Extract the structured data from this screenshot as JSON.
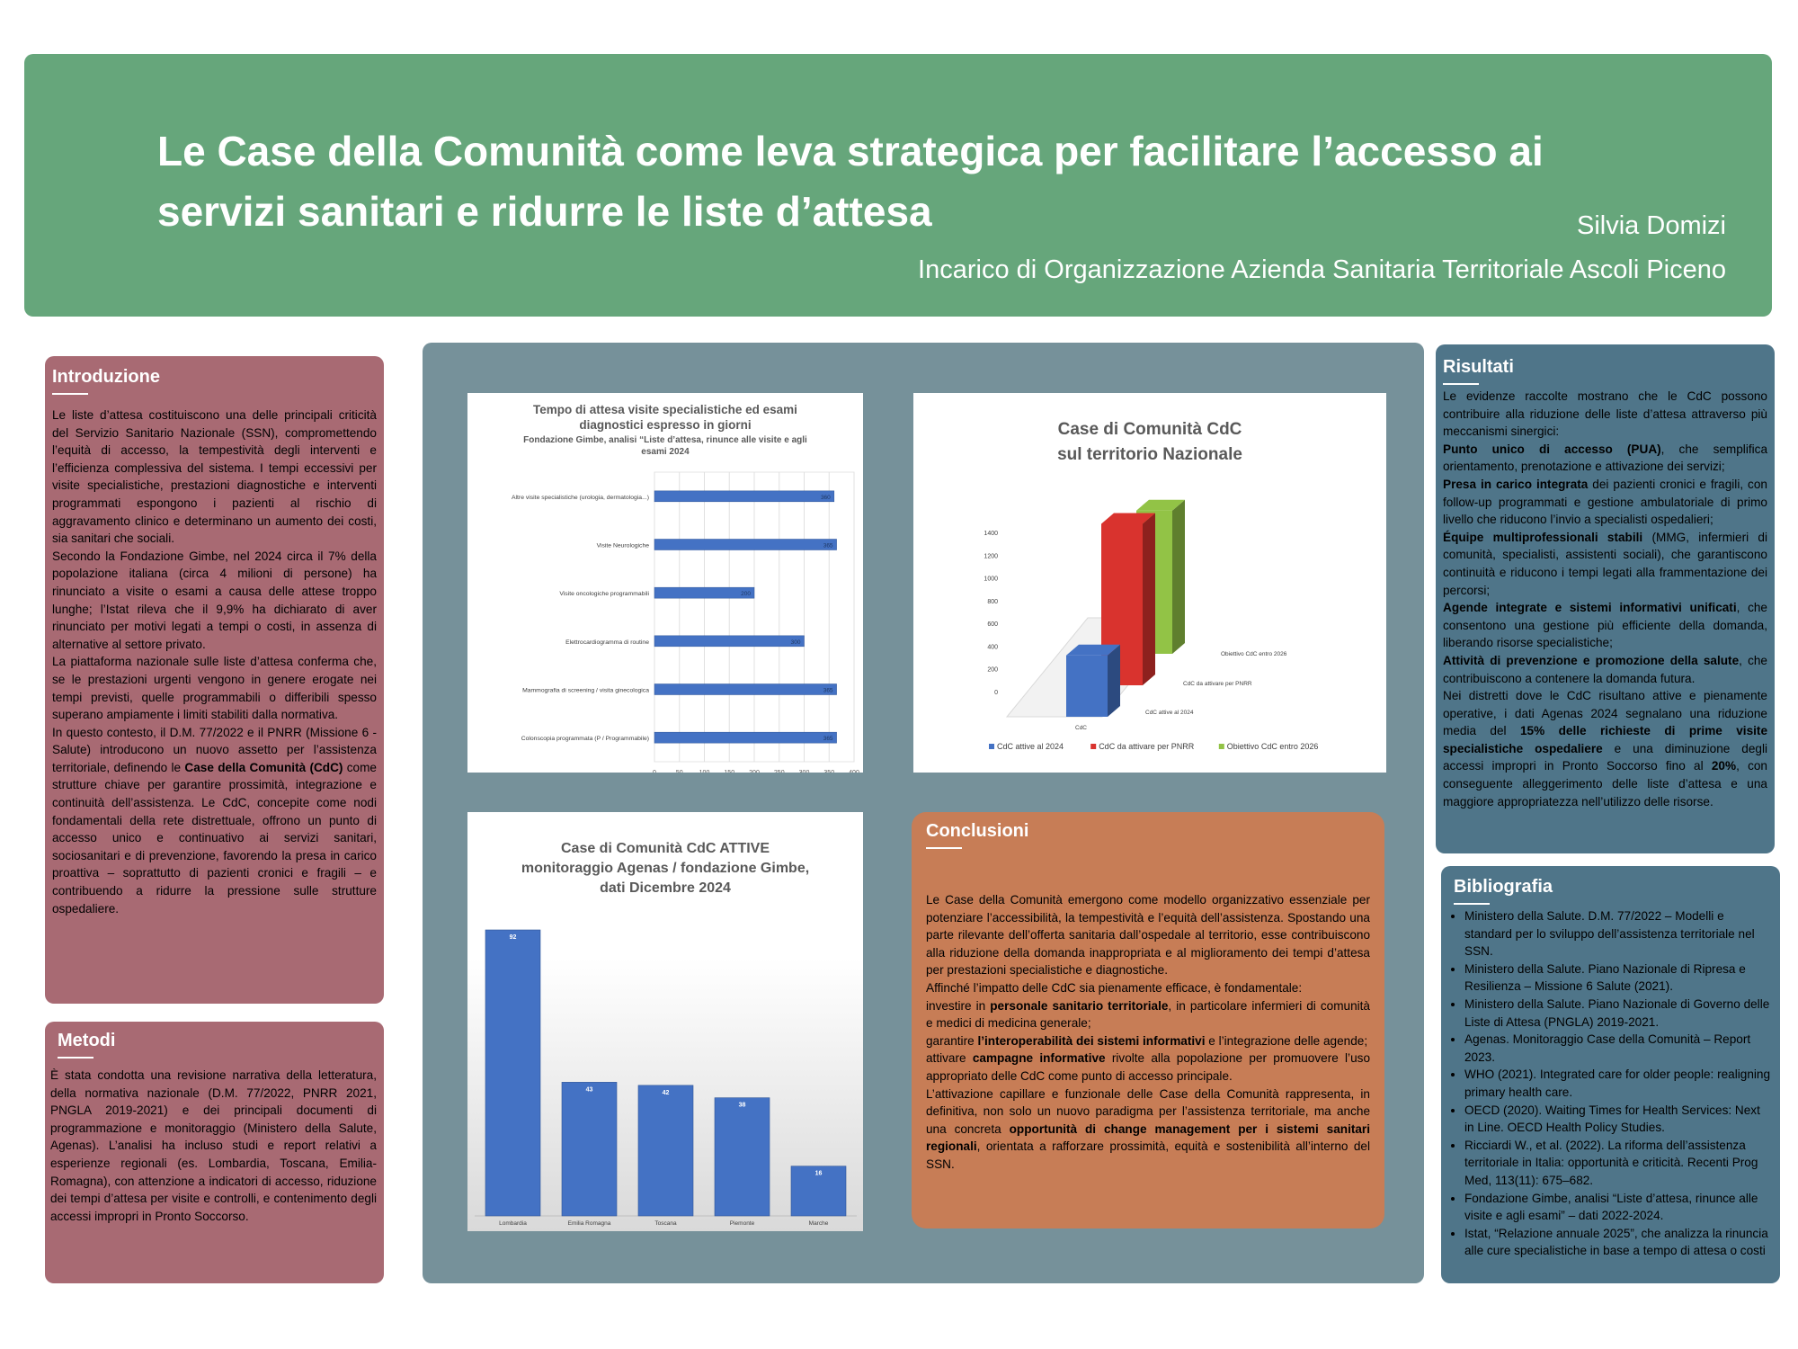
{
  "header": {
    "title_line1": "Le Case della Comunità come leva strategica per facilitare l’accesso ai",
    "title_line2": "servizi sanitari e ridurre le liste d’attesa",
    "author": "Silvia Domizi",
    "affiliation": "Incarico di Organizzazione Azienda Sanitaria Territoriale Ascoli Piceno",
    "color": "#66a67b"
  },
  "intro": {
    "title": "Introduzione",
    "p1": "Le liste d’attesa costituiscono una delle principali criticità del Servizio Sanitario Nazionale (SSN), compromettendo l’equità di accesso, la tempestività degli interventi e l’efficienza complessiva del sistema. I tempi eccessivi per visite specialistiche, prestazioni diagnostiche e interventi programmati espongono i pazienti al rischio di aggravamento clinico e determinano un aumento dei costi, sia sanitari che sociali.",
    "p2": "Secondo la Fondazione Gimbe, nel 2024 circa il 7% della popolazione italiana (circa 4 milioni di persone) ha rinunciato a visite o esami a causa delle attese troppo lunghe; l’Istat rileva che il 9,9% ha dichiarato di aver rinunciato per motivi legati a tempi o costi, in assenza di alternative al settore privato.",
    "p3": "La piattaforma nazionale sulle liste d’attesa conferma che, se le prestazioni urgenti vengono in genere erogate nei tempi previsti, quelle programmabili o differibili spesso superano ampiamente i limiti stabiliti dalla normativa.",
    "p4a": "In questo contesto, il D.M. 77/2022 e il PNRR (Missione 6 - Salute) introducono un nuovo assetto per l’assistenza territoriale, definendo le ",
    "p4b": "Case della Comunità (CdC)",
    "p4c": " come strutture chiave per garantire prossimità, integrazione e continuità dell’assistenza. Le CdC, concepite come nodi fondamentali della rete distrettuale, offrono un punto di accesso unico e continuativo ai servizi sanitari, sociosanitari e di prevenzione, favorendo la presa in carico proattiva – soprattutto di pazienti cronici e fragili – e contribuendo a ridurre la pressione sulle strutture ospedaliere."
  },
  "metodi": {
    "title": "Metodi",
    "p1": "È stata condotta una revisione narrativa della letteratura, della normativa nazionale (D.M. 77/2022, PNRR 2021, PNGLA 2019-2021) e dei principali documenti di programmazione e monitoraggio (Ministero della Salute, Agenas). L’analisi ha incluso studi e report relativi a esperienze regionali (es. Lombardia, Toscana, Emilia-Romagna), con attenzione a indicatori di accesso, riduzione dei tempi d’attesa per visite e controlli, e contenimento degli accessi impropri in Pronto Soccorso."
  },
  "risultati": {
    "title": "Risultati",
    "intro": "Le evidenze raccolte mostrano che le CdC possono contribuire alla riduzione delle liste d’attesa attraverso più meccanismi sinergici:",
    "items": [
      {
        "bold": "Punto unico di accesso (PUA)",
        "text": ", che semplifica orientamento, prenotazione e attivazione dei servizi;"
      },
      {
        "bold": "Presa in carico integrata",
        "text": " dei pazienti cronici e fragili, con follow-up programmati e gestione ambulatoriale di primo livello che riducono l’invio a specialisti ospedalieri;"
      },
      {
        "bold": "Équipe multiprofessionali stabili",
        "text": " (MMG, infermieri di comunità, specialisti, assistenti sociali), che garantiscono continuità e riducono i tempi legati alla frammentazione dei percorsi;"
      },
      {
        "bold": "Agende integrate e sistemi informativi unificati",
        "text": ", che consentono una gestione più efficiente della domanda, liberando risorse specialistiche;"
      },
      {
        "bold": "Attività di prevenzione e promozione della salute",
        "text": ", che contribuiscono a contenere la domanda futura."
      }
    ],
    "outro_a": "Nei distretti dove le CdC risultano attive e pienamente operative, i dati Agenas 2024 segnalano una riduzione media del ",
    "outro_b": "15% delle richieste di prime visite specialistiche ospedaliere",
    "outro_c": " e una diminuzione degli accessi impropri in Pronto Soccorso fino al ",
    "outro_d": "20%",
    "outro_e": ", con conseguente alleggerimento delle liste d’attesa e una maggiore appropriatezza nell’utilizzo delle risorse."
  },
  "conclusioni": {
    "title": "Conclusioni",
    "p1": "Le Case della Comunità emergono come modello organizzativo essenziale per potenziare l’accessibilità, la tempestività e l’equità dell’assistenza. Spostando una parte rilevante dell’offerta sanitaria dall’ospedale al territorio, esse contribuiscono alla riduzione della domanda inappropriata e al miglioramento dei tempi d’attesa per prestazioni specialistiche e diagnostiche.",
    "p2": "Affinché l’impatto delle CdC sia pienamente efficace, è fondamentale:",
    "l1a": "investire in ",
    "l1b": "personale sanitario territoriale",
    "l1c": ", in particolare infermieri di comunità e medici di medicina generale;",
    "l2a": "garantire ",
    "l2b": "l’interoperabilità dei sistemi informativi",
    "l2c": " e l’integrazione delle agende;",
    "l3a": "attivare ",
    "l3b": "campagne informative",
    "l3c": " rivolte alla popolazione per promuovere l’uso appropriato delle CdC come punto di accesso principale.",
    "p3a": "L’attivazione capillare e funzionale delle Case della Comunità rappresenta, in definitiva, non solo un nuovo paradigma per l’assistenza territoriale, ma anche una concreta ",
    "p3b": "opportunità di change management per i sistemi sanitari regionali",
    "p3c": ", orientata a rafforzare prossimità, equità e sostenibilità all’interno del SSN."
  },
  "bibliografia": {
    "title": "Bibliografia",
    "items": [
      "Ministero della Salute. D.M. 77/2022 – Modelli e standard per lo sviluppo dell’assistenza territoriale nel SSN.",
      "Ministero della Salute. Piano Nazionale di Ripresa e Resilienza – Missione 6 Salute (2021).",
      "Ministero della Salute. Piano Nazionale di Governo delle Liste di Attesa (PNGLA) 2019-2021.",
      "Agenas. Monitoraggio Case della Comunità – Report 2023.",
      "WHO (2021). Integrated care for older people: realigning primary health care.",
      "OECD (2020). Waiting Times for Health Services: Next in Line. OECD Health Policy Studies.",
      "Ricciardi W., et al. (2022). La riforma dell’assistenza territoriale in Italia: opportunità e criticità. Recenti Prog Med, 113(11): 675–682.",
      " Fondazione Gimbe, analisi “Liste d’attesa, rinunce alle visite e agli esami” – dati 2022-2024.",
      "Istat, “Relazione annuale 2025”, che analizza la rinuncia alle cure specialistiche in base a tempo di attesa o costi"
    ]
  },
  "chart_data": [
    {
      "type": "bar",
      "orientation": "horizontal",
      "title": "Tempo di attesa visite specialistiche ed esami diagnostici espresso in giorni",
      "subtitle": "Fondazione Gimbe, analisi “Liste d’attesa, rinunce alle visite e agli esami 2024",
      "categories": [
        "Altre visite specialistiche (urologia, dermatologia...)",
        "Visite Neurologiche",
        "Visite oncologiche programmabili",
        "Elettrocardiogramma di routine",
        "Mammografia di screening / visita ginecologica",
        "Colonscopia programmata (P / Programmabile)"
      ],
      "values": [
        360,
        365,
        200,
        300,
        365,
        365
      ],
      "xlim": [
        0,
        400
      ],
      "xticks": [
        0,
        50,
        100,
        150,
        200,
        250,
        300,
        350,
        400
      ],
      "color": "#4472c4",
      "grid": true
    },
    {
      "type": "bar",
      "style": "3d",
      "title_line1": "Case di Comunità CdC",
      "title_line2": "sul territorio Nazionale",
      "categories": [
        "CdC"
      ],
      "series": [
        {
          "name": "CdC attive al 2024",
          "values": [
            540
          ],
          "color": "#4472c4"
        },
        {
          "name": "CdC da attivare per PNRR",
          "values": [
            1420
          ],
          "color": "#d9332e"
        },
        {
          "name": "Obiettivo CdC entro 2026",
          "values": [
            1260
          ],
          "color": "#92c346"
        }
      ],
      "depth_labels": [
        "CdC attive al 2024",
        "CdC da attivare per PNRR",
        "Obiettivo CdC entro 2026"
      ],
      "ylim": [
        0,
        1400
      ],
      "yticks": [
        0,
        200,
        400,
        600,
        800,
        1000,
        1200,
        1400
      ],
      "legend": "bottom"
    },
    {
      "type": "bar",
      "title_line1": "Case di Comunità CdC ATTIVE",
      "title_line2": "monitoraggio Agenas / fondazione Gimbe,",
      "title_line3": "dati Dicembre 2024",
      "categories": [
        "Lombardia",
        "Emilia Romagna",
        "Toscana",
        "Piemonte",
        "Marche"
      ],
      "values": [
        92,
        43,
        42,
        38,
        16
      ],
      "ylim": [
        0,
        92
      ],
      "color": "#4472c4"
    }
  ]
}
